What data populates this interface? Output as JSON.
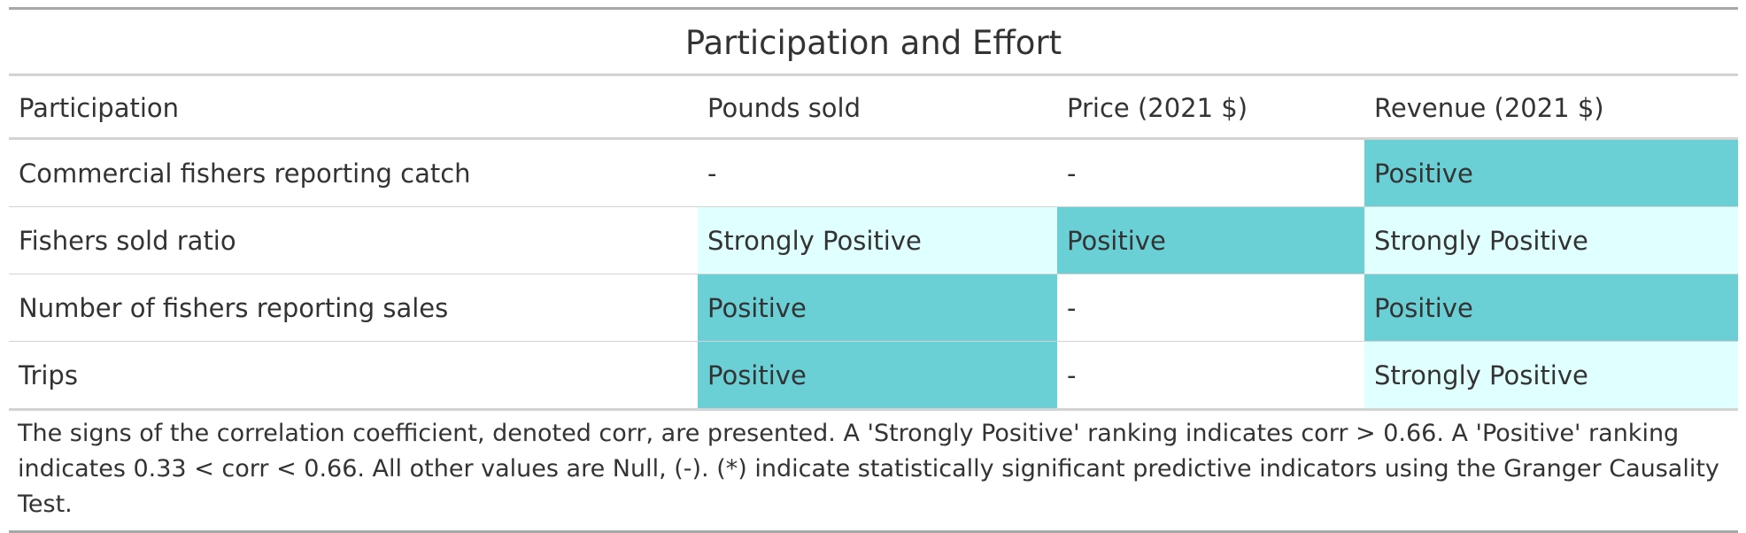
{
  "title": "Participation and Effort",
  "headers": [
    "Participation",
    "Pounds sold",
    "Price (2021 $)",
    "Revenue (2021 $)"
  ],
  "rows": [
    {
      "label": "Commercial fishers reporting catch",
      "cells": [
        "-",
        "-",
        "Positive"
      ],
      "levels": [
        "null",
        "null",
        "positive"
      ]
    },
    {
      "label": "Fishers sold ratio",
      "cells": [
        "Strongly Positive",
        "Positive",
        "Strongly Positive"
      ],
      "levels": [
        "strong",
        "positive",
        "strong"
      ]
    },
    {
      "label": "Number of fishers reporting sales",
      "cells": [
        "Positive",
        "-",
        "Positive"
      ],
      "levels": [
        "positive",
        "null",
        "positive"
      ]
    },
    {
      "label": "Trips",
      "cells": [
        "Positive",
        "-",
        "Strongly Positive"
      ],
      "levels": [
        "positive",
        "null",
        "strong"
      ]
    }
  ],
  "colors": {
    "strongly_positive": "#e0ffff",
    "positive": "#6ad0d6"
  },
  "footnote": "The signs of the correlation coefficient, denoted corr, are presented. A 'Strongly Positive' ranking indicates corr > 0.66. A 'Positive' ranking indicates 0.33 < corr < 0.66. All other values are Null, (-). (*) indicate statistically significant predictive indicators using the Granger Causality Test."
}
